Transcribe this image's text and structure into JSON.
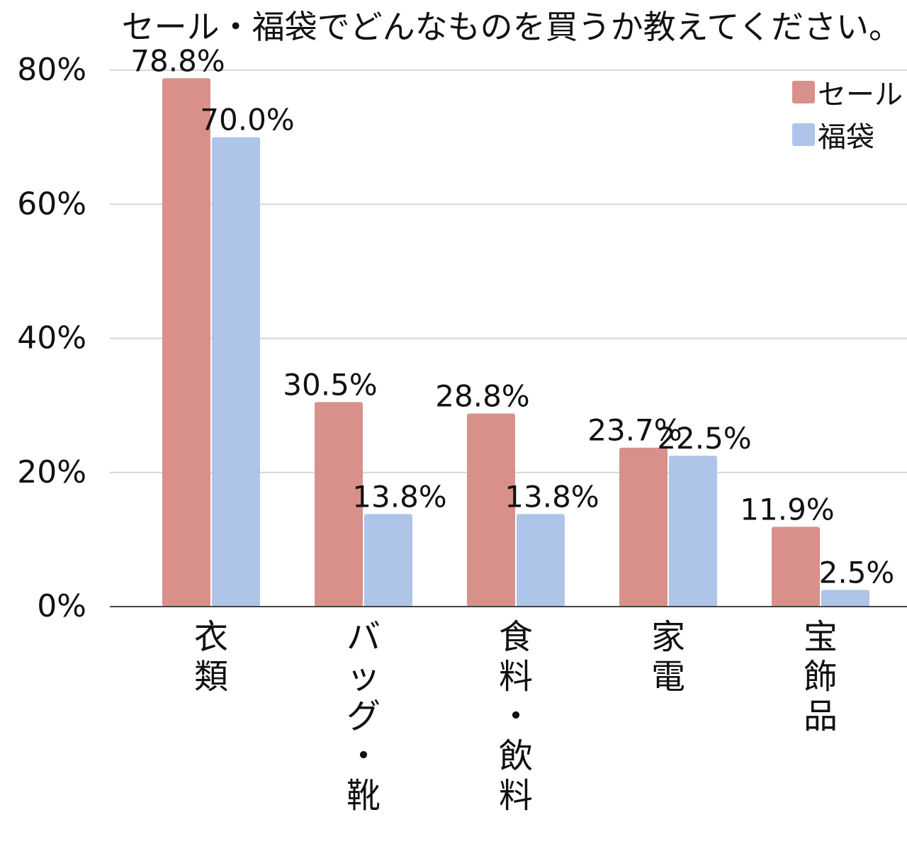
{
  "chart_data": {
    "type": "bar",
    "title": "セール・福袋でどんなものを買うか教えてください。",
    "categories": [
      "衣類",
      "バッグ・靴",
      "食料・飲料",
      "家電",
      "宝飾品"
    ],
    "series": [
      {
        "name": "セール",
        "color": "#d9908a",
        "values": [
          78.8,
          30.5,
          28.8,
          23.7,
          11.9
        ],
        "labels": [
          "78.8%",
          "30.5%",
          "28.8%",
          "23.7%",
          "11.9%"
        ]
      },
      {
        "name": "福袋",
        "color": "#aec4e8",
        "values": [
          70.0,
          13.8,
          13.8,
          22.5,
          2.5
        ],
        "labels": [
          "70.0%",
          "13.8%",
          "13.8%",
          "22.5%",
          "2.5%"
        ]
      }
    ],
    "y_ticks": [
      "0%",
      "20%",
      "40%",
      "60%",
      "80%"
    ],
    "ylim": [
      0,
      80
    ],
    "grid": true,
    "legend_position": "top-right"
  }
}
